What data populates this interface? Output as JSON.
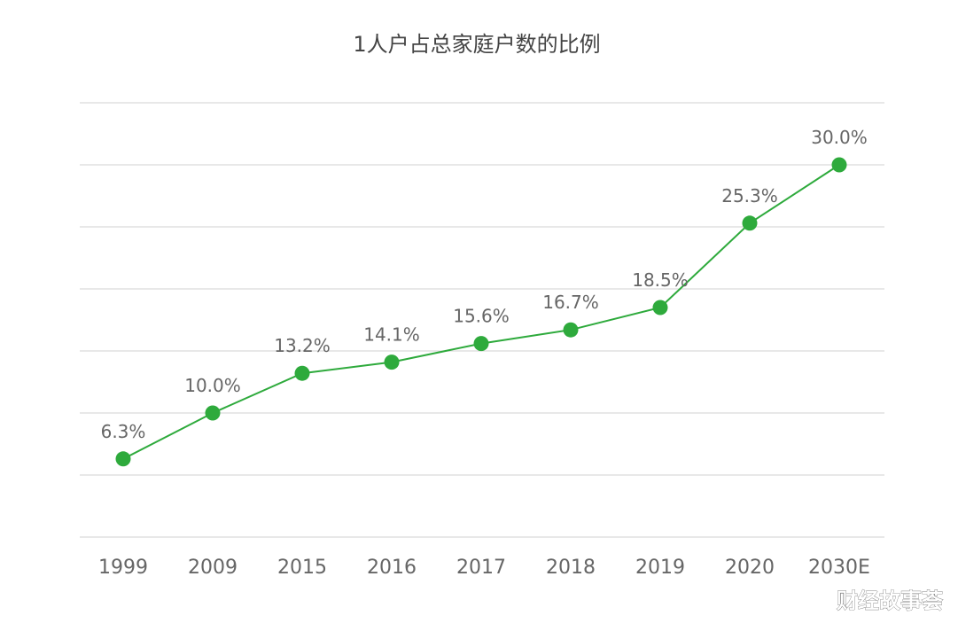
{
  "chart_data": {
    "type": "line",
    "title": "1人户占总家庭户数的比例",
    "categories": [
      "1999",
      "2009",
      "2015",
      "2016",
      "2017",
      "2018",
      "2019",
      "2020",
      "2030E"
    ],
    "series": [
      {
        "values": [
          6.3,
          10.0,
          13.2,
          14.1,
          15.6,
          16.7,
          18.5,
          25.3,
          30.0
        ],
        "data_labels": [
          "6.3%",
          "10.0%",
          "13.2%",
          "14.1%",
          "15.6%",
          "16.7%",
          "18.5%",
          "25.3%",
          "30.0%"
        ]
      }
    ],
    "xlabel": "",
    "ylabel": "",
    "ylim": [
      0,
      35
    ],
    "grid": true,
    "legend": "none",
    "colors": {
      "series": "#2eaa3c",
      "grid": "#d9d9d9",
      "text": "#666666"
    }
  },
  "watermark": "财经故事荟"
}
